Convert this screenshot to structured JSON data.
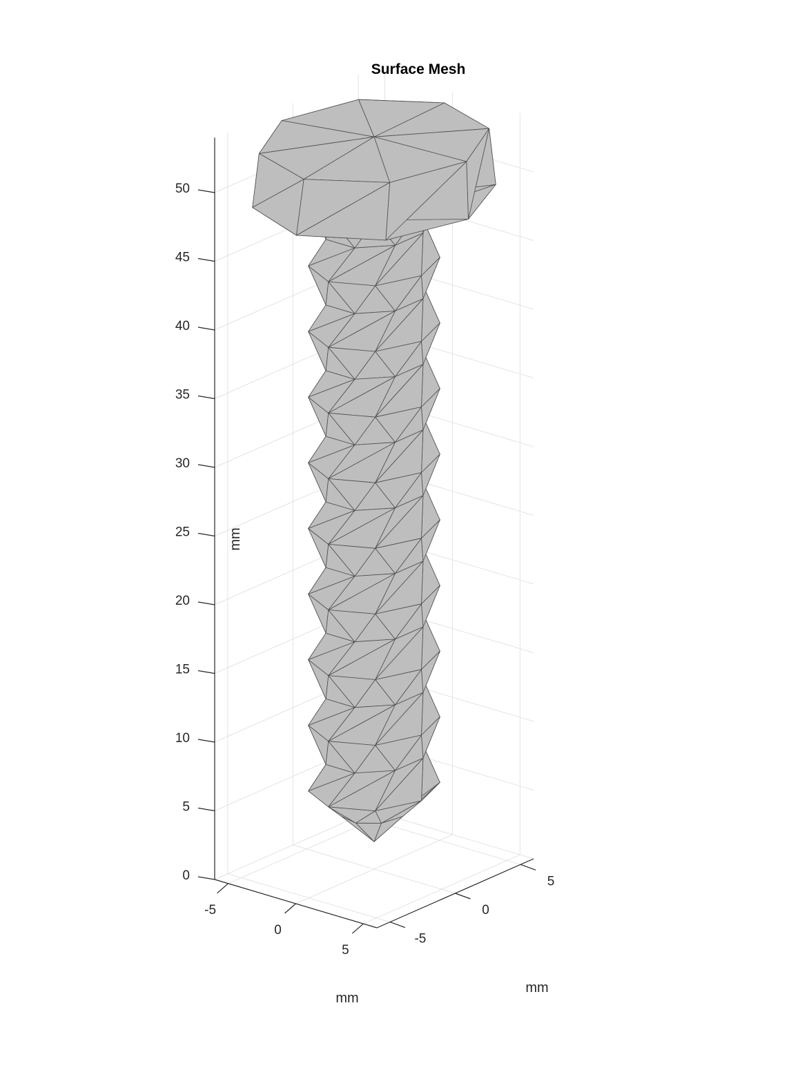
{
  "chart_data": {
    "type": "surface-mesh-3d",
    "title": "Surface Mesh",
    "xlabel": "mm",
    "ylabel": "mm",
    "zlabel": "mm",
    "x_ticks": [
      -5,
      0,
      5
    ],
    "y_ticks": [
      -5,
      0,
      5
    ],
    "z_ticks": [
      0,
      5,
      10,
      15,
      20,
      25,
      30,
      35,
      40,
      45,
      50
    ],
    "xlim": [
      -6,
      6
    ],
    "ylim": [
      -6,
      6
    ],
    "zlim": [
      0,
      54
    ],
    "grid": true,
    "face_color": "#bebebe",
    "edge_color": "#4d4d4d",
    "object": {
      "shaft_radius_mm": 3,
      "thread_count": 9,
      "thread_depth_mm": 0.5,
      "tip_z_mm": 2,
      "shaft_start_z_mm": 6,
      "shaft_end_z_mm": 49,
      "head_bottom_z_mm": 49,
      "head_top_z_mm": 53,
      "head_radius_mm": 6.5
    }
  }
}
